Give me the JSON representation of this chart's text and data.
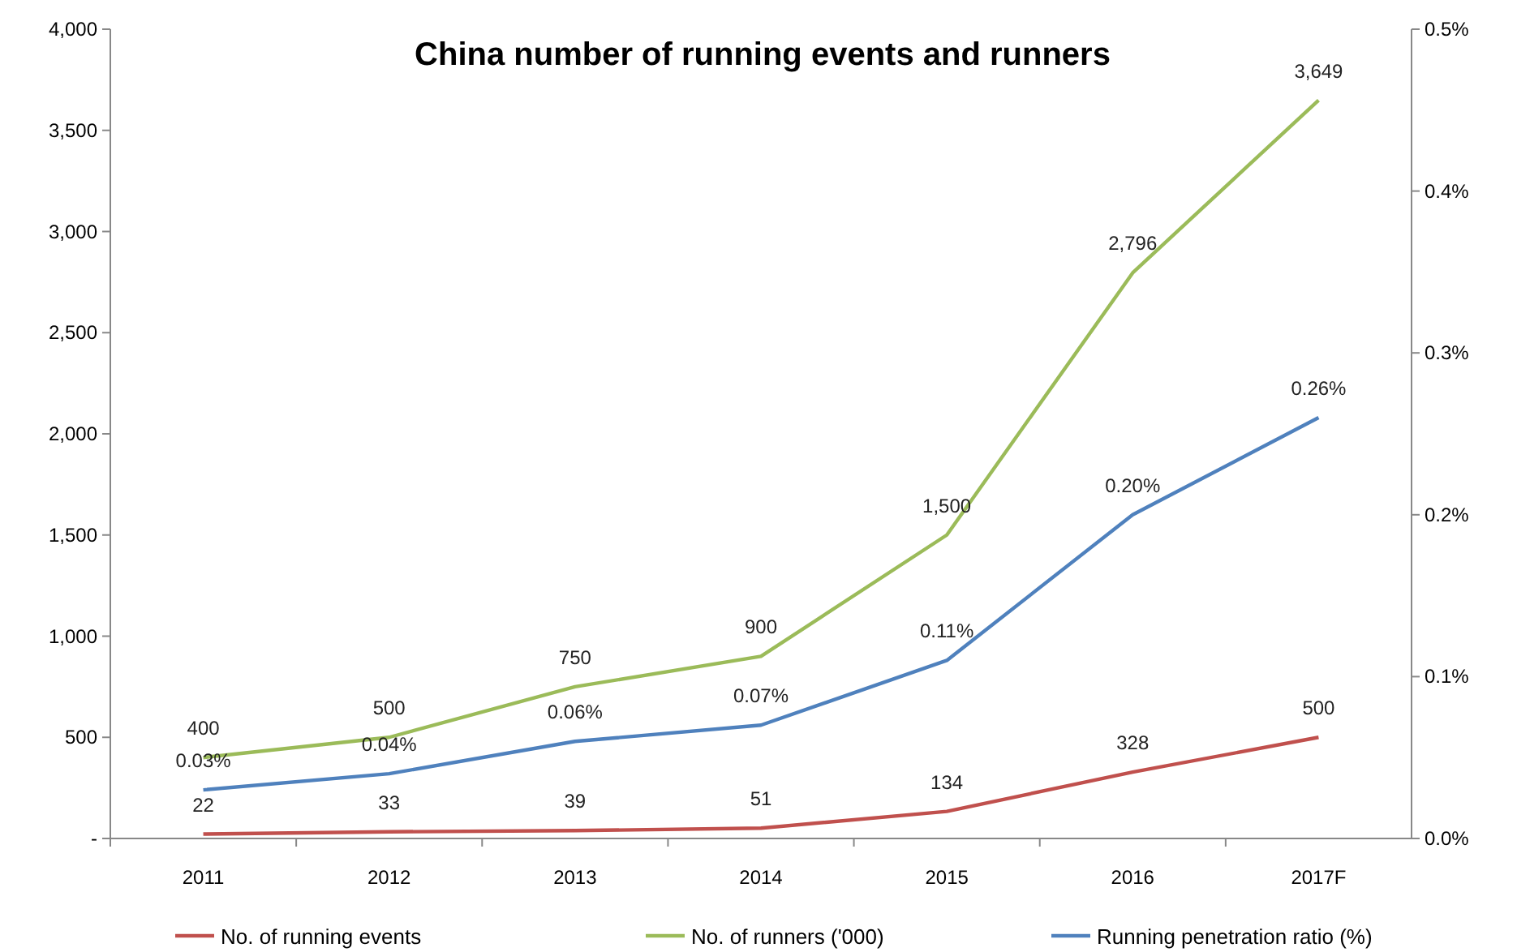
{
  "chart_data": {
    "type": "line",
    "title": "China number of running events and runners",
    "categories": [
      "2011",
      "2012",
      "2013",
      "2014",
      "2015",
      "2016",
      "2017F"
    ],
    "series": [
      {
        "name": "No. of running events",
        "color": "#c0504d",
        "values": [
          22,
          33,
          39,
          51,
          134,
          328,
          500
        ],
        "value_labels": [
          "22",
          "33",
          "39",
          "51",
          "134",
          "328",
          "500"
        ]
      },
      {
        "name": "No. of runners ('000)",
        "color": "#9bbb59",
        "values": [
          400,
          500,
          750,
          900,
          1500,
          2796,
          3649
        ],
        "value_labels": [
          "400",
          "500",
          "750",
          "900",
          "1,500",
          "2,796",
          "3,649"
        ]
      },
      {
        "name": "Running penetration ratio (%)",
        "color": "#4f81bd",
        "axis": "y2",
        "values": [
          0.03,
          0.04,
          0.06,
          0.07,
          0.11,
          0.2,
          0.26
        ],
        "value_labels": [
          "0.03%",
          "0.04%",
          "0.06%",
          "0.07%",
          "0.11%",
          "0.20%",
          "0.26%"
        ]
      }
    ],
    "ylim": [
      0,
      4000
    ],
    "yticks": [
      {
        "value": 0,
        "label": "-"
      },
      {
        "value": 500,
        "label": "500"
      },
      {
        "value": 1000,
        "label": "1,000"
      },
      {
        "value": 1500,
        "label": "1,500"
      },
      {
        "value": 2000,
        "label": "2,000"
      },
      {
        "value": 2500,
        "label": "2,500"
      },
      {
        "value": 3000,
        "label": "3,000"
      },
      {
        "value": 3500,
        "label": "3,500"
      },
      {
        "value": 4000,
        "label": "4,000"
      }
    ],
    "y2lim": [
      0,
      0.5
    ],
    "y2ticks": [
      {
        "value": 0,
        "label": "0.0%"
      },
      {
        "value": 0.1,
        "label": "0.1%"
      },
      {
        "value": 0.2,
        "label": "0.2%"
      },
      {
        "value": 0.3,
        "label": "0.3%"
      },
      {
        "value": 0.4,
        "label": "0.4%"
      },
      {
        "value": 0.5,
        "label": "0.5%"
      }
    ],
    "legend": "bottom",
    "marker": "none",
    "line_style": "solid",
    "grid": false
  }
}
